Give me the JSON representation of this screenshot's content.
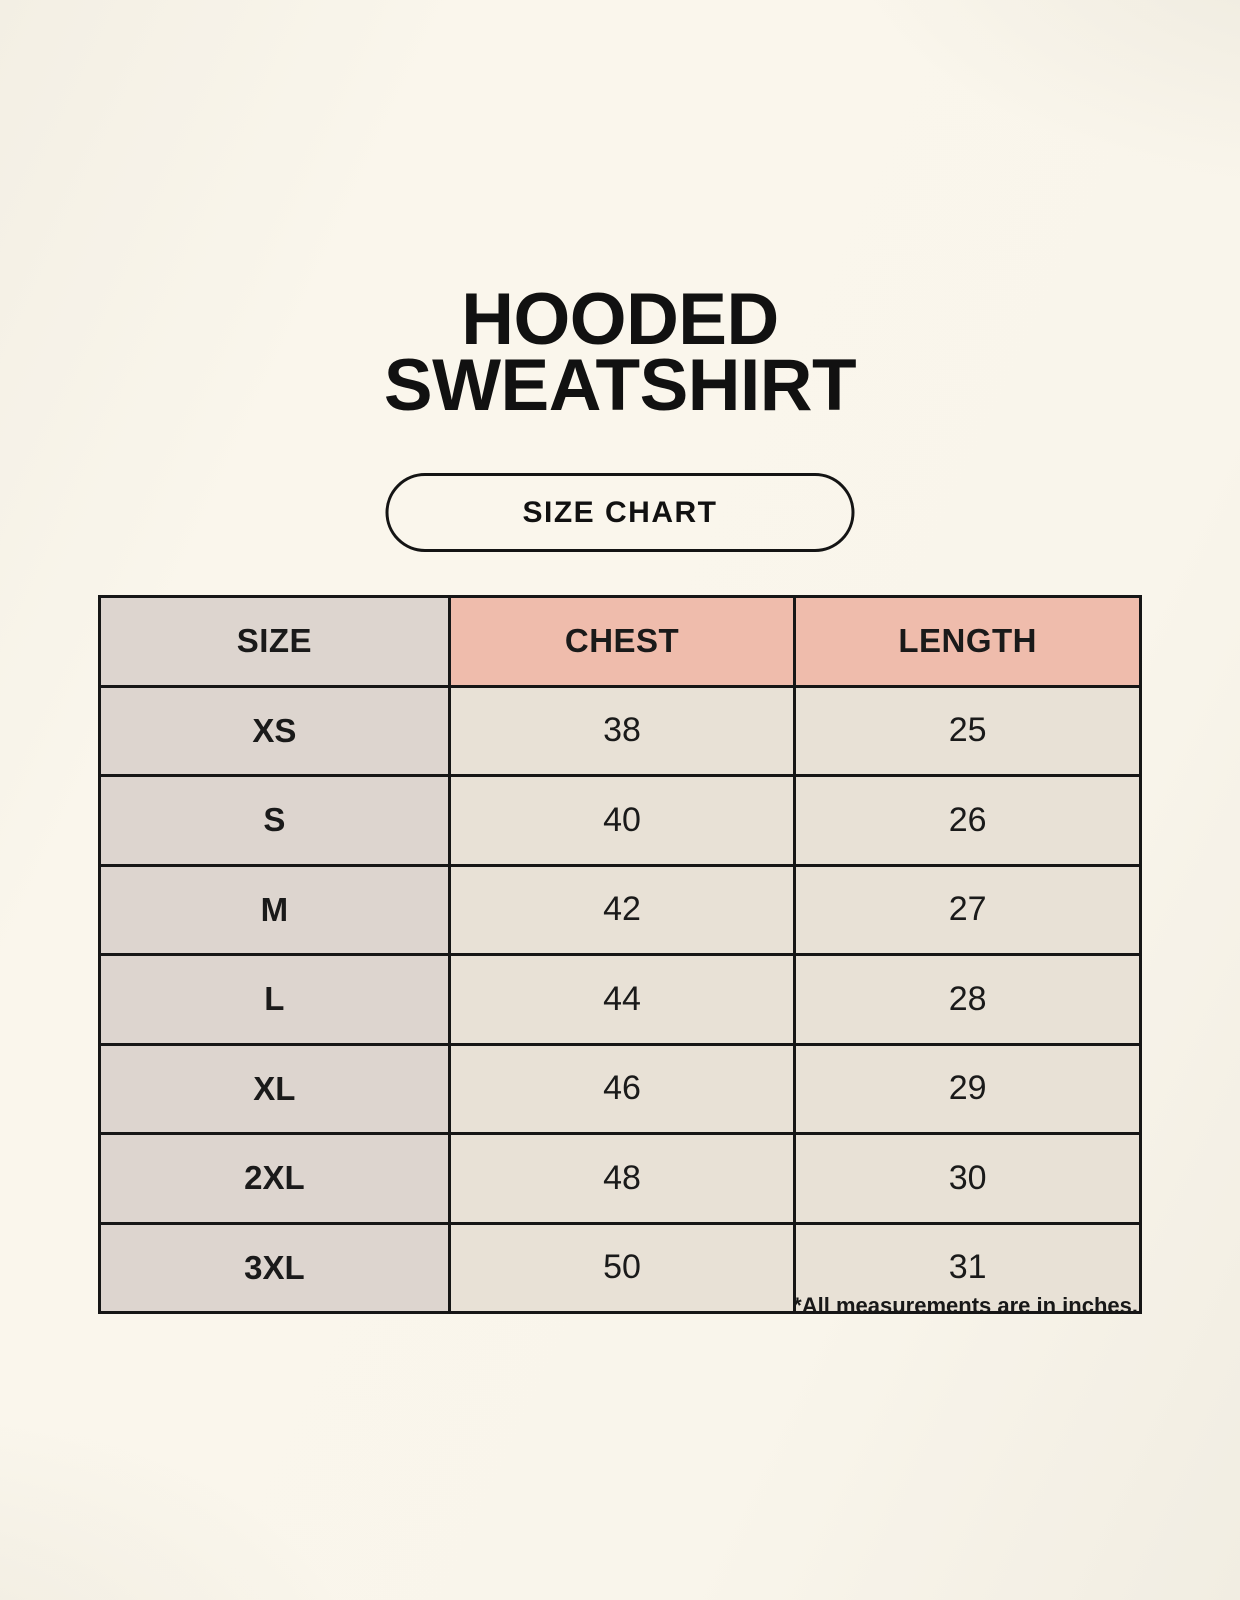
{
  "header": {
    "title_line1": "HOODED",
    "title_line2": "SWEATSHIRT",
    "size_chart_button": "SIZE CHART"
  },
  "chart_data": {
    "type": "table",
    "title": "HOODED SWEATSHIRT",
    "subtitle": "SIZE CHART",
    "columns": [
      "SIZE",
      "CHEST",
      "LENGTH"
    ],
    "rows": [
      [
        "XS",
        "38",
        "25"
      ],
      [
        "S",
        "40",
        "26"
      ],
      [
        "M",
        "42",
        "27"
      ],
      [
        "L",
        "44",
        "28"
      ],
      [
        "XL",
        "46",
        "29"
      ],
      [
        "2XL",
        "48",
        "30"
      ],
      [
        "3XL",
        "50",
        "31"
      ]
    ],
    "footnote": "*All measurements are in inches."
  },
  "colors": {
    "background": "#f8f5eb",
    "header_size_bg": "#ddd5cf",
    "header_measure_bg": "#efbcac",
    "size_col_bg": "#ddd5cf",
    "data_cell_bg": "#e8e1d6",
    "border": "#161616",
    "text": "#1a1a1a"
  }
}
